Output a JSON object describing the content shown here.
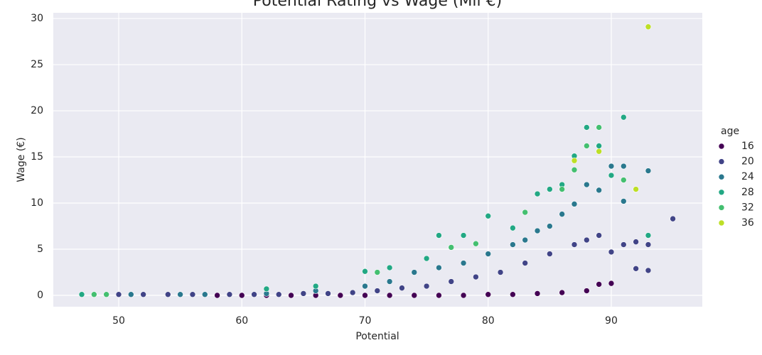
{
  "chart_data": {
    "type": "scatter",
    "title": "Potential Rating vs Wage (Mil €)",
    "x_label": "Potential",
    "y_label": "Wage (€)",
    "legend_title": "age",
    "xlim": [
      44.69,
      97.39
    ],
    "ylim": [
      -1.23,
      30.62
    ],
    "xticks": [
      50,
      60,
      70,
      80,
      90
    ],
    "yticks": [
      0,
      5,
      10,
      15,
      20,
      25,
      30
    ],
    "grid": true,
    "legend": "right",
    "series": [
      {
        "name": "16",
        "color": "#440154",
        "x": [
          58,
          60,
          62,
          64,
          66,
          68,
          70,
          72,
          74,
          76,
          78,
          80,
          82,
          84,
          86,
          88,
          89,
          90
        ],
        "values": [
          0,
          0,
          0,
          0,
          0,
          0,
          0,
          0,
          0,
          0,
          0,
          0.1,
          0.1,
          0.2,
          0.3,
          0.5,
          1.2,
          1.3
        ]
      },
      {
        "name": "20",
        "color": "#414487",
        "x": [
          50,
          52,
          54,
          56,
          59,
          61,
          63,
          65,
          67,
          69,
          71,
          73,
          75,
          77,
          79,
          81,
          83,
          85,
          87,
          88,
          89,
          90,
          91,
          92,
          92,
          93,
          93,
          95
        ],
        "values": [
          0.1,
          0.1,
          0.1,
          0.1,
          0.1,
          0.1,
          0.1,
          0.2,
          0.2,
          0.3,
          0.5,
          0.8,
          1.0,
          1.5,
          2.0,
          2.5,
          3.5,
          4.5,
          5.5,
          6.0,
          6.5,
          4.7,
          5.5,
          5.8,
          2.9,
          5.5,
          2.7,
          8.3
        ]
      },
      {
        "name": "24",
        "color": "#2a788e",
        "x": [
          51,
          55,
          57,
          62,
          66,
          70,
          72,
          74,
          76,
          78,
          80,
          82,
          83,
          84,
          85,
          86,
          87,
          88,
          89,
          90,
          91,
          91,
          93
        ],
        "values": [
          0.1,
          0.1,
          0.1,
          0.2,
          0.5,
          1.0,
          1.5,
          2.5,
          3.0,
          3.5,
          4.5,
          5.5,
          6.0,
          7.0,
          7.5,
          8.8,
          9.9,
          12.0,
          11.4,
          14.0,
          14.0,
          10.2,
          13.5
        ]
      },
      {
        "name": "28",
        "color": "#22a884",
        "x": [
          47,
          62,
          66,
          70,
          72,
          75,
          76,
          78,
          80,
          82,
          84,
          85,
          86,
          87,
          88,
          89,
          90,
          91,
          93
        ],
        "values": [
          0.1,
          0.7,
          1.0,
          2.6,
          3.0,
          4.0,
          6.5,
          6.5,
          8.6,
          7.3,
          11.0,
          11.5,
          12.0,
          15.1,
          18.2,
          16.2,
          13.0,
          19.3,
          6.5
        ]
      },
      {
        "name": "32",
        "color": "#44bf70",
        "x": [
          48,
          49,
          71,
          77,
          79,
          83,
          86,
          87,
          88,
          89,
          91
        ],
        "values": [
          0.1,
          0.1,
          2.5,
          5.2,
          5.6,
          9.0,
          11.5,
          13.6,
          16.2,
          18.2,
          12.5
        ]
      },
      {
        "name": "36",
        "color": "#bddf26",
        "x": [
          87,
          89,
          92,
          93
        ],
        "values": [
          14.6,
          15.6,
          11.5,
          29.1
        ]
      }
    ]
  }
}
